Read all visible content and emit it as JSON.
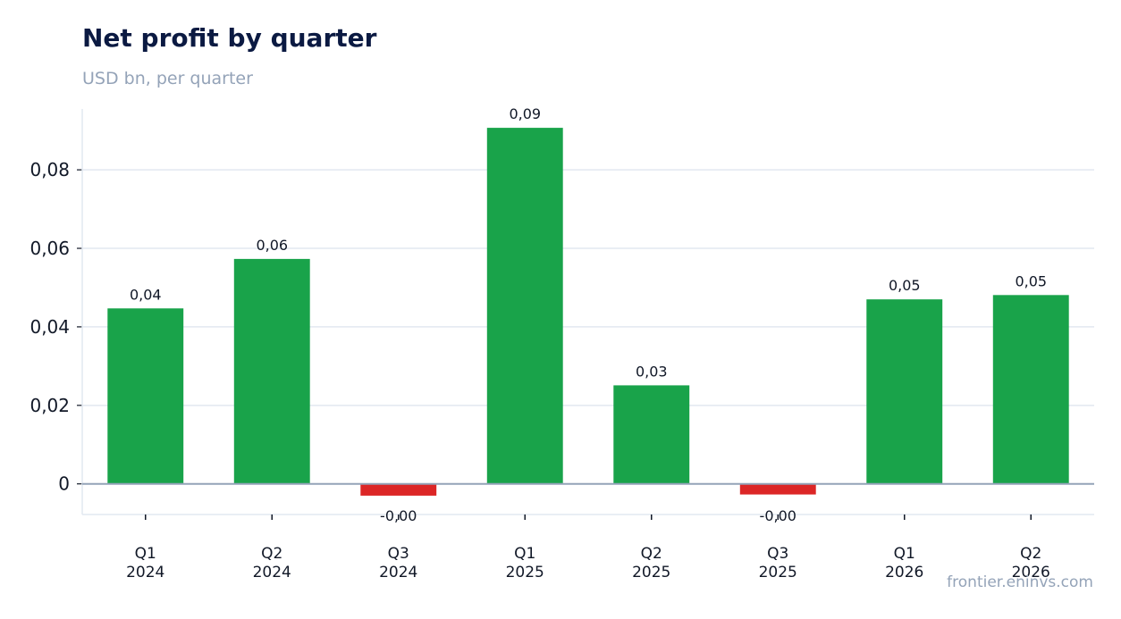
{
  "header": {
    "title": "Net profit by quarter",
    "subtitle": "USD bn, per quarter"
  },
  "footer": {
    "source": "frontier.eninvs.com"
  },
  "colors": {
    "positive": "#19a34a",
    "negative": "#dc2626",
    "grid": "#e2e8f0",
    "zero_line": "#94a3b8",
    "text": "#111827"
  },
  "chart_data": {
    "type": "bar",
    "categories": [
      [
        "Q1",
        "2024"
      ],
      [
        "Q2",
        "2024"
      ],
      [
        "Q3",
        "2024"
      ],
      [
        "Q1",
        "2025"
      ],
      [
        "Q2",
        "2025"
      ],
      [
        "Q3",
        "2025"
      ],
      [
        "Q1",
        "2026"
      ],
      [
        "Q2",
        "2026"
      ]
    ],
    "values": [
      0.0447,
      0.0573,
      -0.003,
      0.0907,
      0.0251,
      -0.0027,
      0.047,
      0.0481
    ],
    "data_labels": [
      "0,04",
      "0,06",
      "-0,00",
      "0,09",
      "0,03",
      "-0,00",
      "0,05",
      "0,05"
    ],
    "yticks": [
      0,
      0.02,
      0.04,
      0.06,
      0.08
    ],
    "ytick_labels": [
      "0",
      "0,02",
      "0,04",
      "0,06",
      "0,08"
    ],
    "ylim": [
      -0.0078,
      0.0955
    ],
    "grid": true,
    "legend": false
  }
}
